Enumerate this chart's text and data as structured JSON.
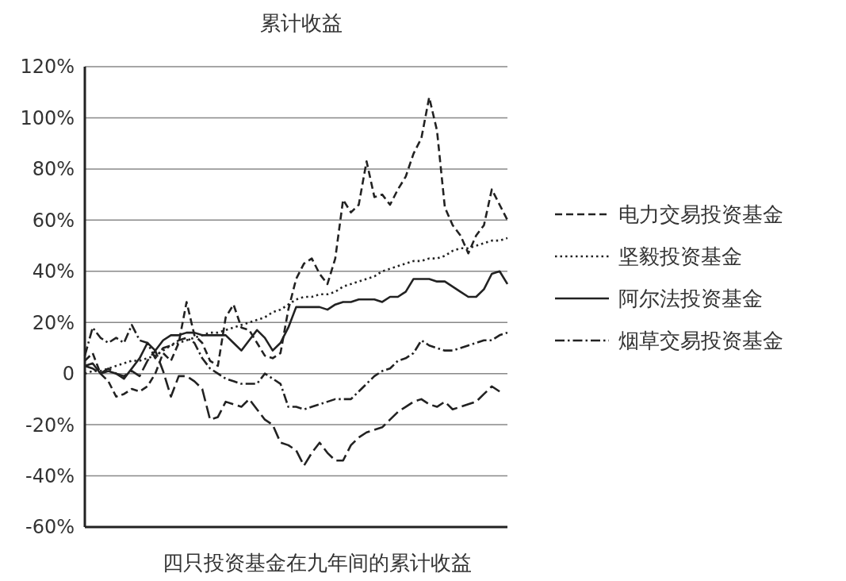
{
  "chart_data": {
    "type": "line",
    "title": "累计收益",
    "annotations": [
      "四只投资基金在九年间的累计收益"
    ],
    "categories": [
      null,
      null,
      null,
      null,
      null,
      null,
      null,
      null,
      null,
      null,
      null,
      null,
      null,
      null,
      null,
      null,
      null,
      null,
      null,
      null,
      null,
      null,
      null,
      null,
      null,
      null,
      null,
      null,
      null,
      null,
      null,
      null,
      null,
      null,
      null,
      null,
      null,
      null,
      null,
      null,
      null,
      null,
      null,
      null,
      null,
      null,
      null,
      null,
      null,
      null,
      null,
      null,
      null,
      null,
      null
    ],
    "series": [
      {
        "name": "电力交易投资基金",
        "color": "#222222",
        "line_style": "dashed",
        "values": [
          5,
          8,
          0,
          -3,
          -9,
          -8,
          -6,
          -7,
          -5,
          0,
          8,
          5,
          12,
          28,
          15,
          12,
          5,
          3,
          22,
          27,
          18,
          17,
          12,
          7,
          6,
          8,
          25,
          37,
          43,
          45,
          39,
          35,
          45,
          68,
          63,
          66,
          83,
          69,
          70,
          66,
          72,
          77,
          86,
          92,
          108,
          95,
          65,
          58,
          54,
          47,
          54,
          58,
          72,
          66,
          60
        ]
      },
      {
        "name": "坚毅投资基金",
        "color": "#222222",
        "line_style": "dotted",
        "values": [
          0,
          1,
          1,
          2,
          3,
          4,
          5,
          5,
          6,
          7,
          9,
          11,
          12,
          13,
          14,
          15,
          16,
          16,
          17,
          18,
          19,
          20,
          21,
          22,
          24,
          25,
          27,
          29,
          30,
          30,
          31,
          31,
          32,
          34,
          35,
          36,
          37,
          38,
          40,
          41,
          42,
          43,
          44,
          44,
          45,
          45,
          46,
          48,
          49,
          49,
          50,
          51,
          52,
          52,
          53
        ]
      },
      {
        "name": "阿尔法投资基金",
        "color": "#222222",
        "line_style": "solid",
        "values": [
          3,
          4,
          0,
          1,
          0,
          -2,
          2,
          6,
          12,
          9,
          13,
          15,
          15,
          16,
          16,
          15,
          15,
          15,
          15,
          12,
          9,
          13,
          17,
          14,
          9,
          12,
          18,
          26,
          26,
          26,
          26,
          25,
          27,
          28,
          28,
          29,
          29,
          29,
          28,
          30,
          30,
          32,
          37,
          37,
          37,
          36,
          36,
          34,
          32,
          30,
          30,
          33,
          39,
          40,
          35
        ]
      },
      {
        "name": "烟草交易投资基金",
        "color": "#222222",
        "line_style": "dashdot",
        "values": [
          7,
          18,
          14,
          12,
          14,
          12,
          19,
          13,
          12,
          6,
          10,
          11,
          13,
          14,
          12,
          6,
          2,
          0,
          -2,
          -3,
          -4,
          -4,
          -4,
          0,
          -2,
          -4,
          -13,
          -13,
          -14,
          -13,
          -12,
          -11,
          -10,
          -10,
          -10,
          -7,
          -4,
          -1,
          1,
          2,
          5,
          6,
          8,
          13,
          11,
          10,
          9,
          9,
          10,
          11,
          12,
          13,
          13,
          15,
          16
        ]
      },
      {
        "color": "#222222",
        "line_style": "longdash",
        "values": [
          3,
          2,
          0,
          2,
          0,
          -1,
          1,
          -1,
          5,
          9,
          1,
          -9,
          -1,
          -1,
          -3,
          -6,
          -18,
          -17,
          -11,
          -12,
          -13,
          -10,
          -14,
          -18,
          -20,
          -27,
          -28,
          -30,
          -36,
          -31,
          -27,
          -31,
          -34,
          -34,
          -28,
          -25,
          -23,
          -22,
          -21,
          -18,
          -15,
          -13,
          -11,
          -10,
          -12,
          -13,
          -11,
          -14,
          -13,
          -12,
          -11,
          -8,
          -5,
          -7,
          null
        ]
      }
    ],
    "ylim": [
      -60,
      120
    ],
    "yticks": [
      {
        "value": -60,
        "label": "-60%"
      },
      {
        "value": -40,
        "label": "-40%"
      },
      {
        "value": -20,
        "label": "-20%"
      },
      0,
      {
        "value": 20,
        "label": "20%"
      },
      {
        "value": 40,
        "label": "40%"
      },
      {
        "value": 60,
        "label": "60%"
      },
      {
        "value": 80,
        "label": "80%"
      },
      {
        "value": 100,
        "label": "100%"
      },
      {
        "value": 120,
        "label": "120%"
      }
    ],
    "grid": "y",
    "legend": "right"
  }
}
